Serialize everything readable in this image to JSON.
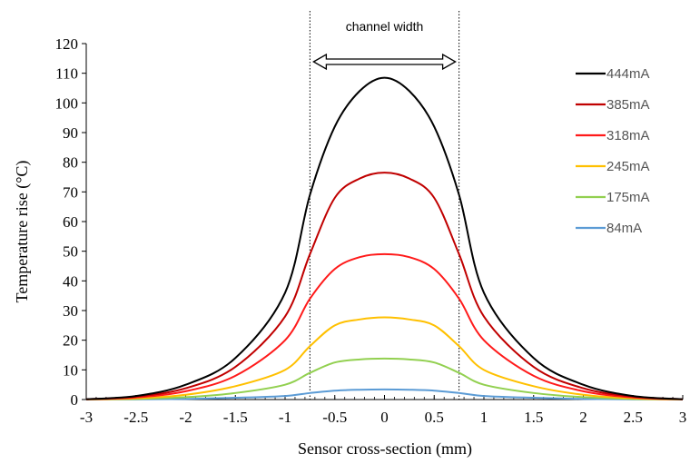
{
  "chart_data": {
    "type": "line",
    "title": "",
    "xlabel": "Sensor cross-section (mm)",
    "ylabel": "Temperature rise (°C)",
    "xlim": [
      -3,
      3
    ],
    "ylim": [
      0,
      120
    ],
    "x_ticks": [
      -3,
      -2.5,
      -2,
      -1.5,
      -1,
      -0.5,
      0,
      0.5,
      1,
      1.5,
      2,
      2.5,
      3
    ],
    "y_ticks": [
      0,
      10,
      20,
      30,
      40,
      50,
      60,
      70,
      80,
      90,
      100,
      110,
      120
    ],
    "grid": false,
    "legend_position": "top-right",
    "x": [
      -3,
      -2.5,
      -2,
      -1.5,
      -1,
      -0.75,
      -0.5,
      -0.25,
      0,
      0.25,
      0.5,
      0.75,
      1,
      1.5,
      2,
      2.5,
      3
    ],
    "series": [
      {
        "name": "444mA",
        "color": "#000000",
        "values": [
          0.1,
          1.2,
          5,
          14,
          36,
          69,
          92,
          104,
          108.5,
          104,
          92,
          69,
          36,
          14,
          5,
          1.2,
          0.1
        ]
      },
      {
        "name": "385mA",
        "color": "#c00000",
        "values": [
          0.1,
          1,
          3.8,
          11,
          28,
          49,
          68,
          74.5,
          76.5,
          74.5,
          68,
          49,
          28,
          11,
          3.8,
          1,
          0.1
        ]
      },
      {
        "name": "318mA",
        "color": "#ff1a1a",
        "values": [
          0.05,
          0.7,
          2.8,
          8,
          20,
          34,
          44,
          48,
          49,
          48,
          44,
          34,
          20,
          8,
          2.8,
          0.7,
          0.05
        ]
      },
      {
        "name": "245mA",
        "color": "#ffc000",
        "values": [
          0.03,
          0.4,
          1.6,
          4.5,
          10,
          18,
          25,
          27,
          27.7,
          27,
          25,
          18,
          10,
          4.5,
          1.6,
          0.4,
          0.03
        ]
      },
      {
        "name": "175mA",
        "color": "#92d050",
        "values": [
          0.02,
          0.2,
          0.8,
          2.2,
          5,
          9,
          12.5,
          13.5,
          13.8,
          13.5,
          12.5,
          9,
          5,
          2.2,
          0.8,
          0.2,
          0.02
        ]
      },
      {
        "name": "84mA",
        "color": "#5b9bd5",
        "values": [
          0.01,
          0.05,
          0.2,
          0.6,
          1.2,
          2.2,
          3,
          3.3,
          3.4,
          3.3,
          3,
          2.2,
          1.2,
          0.6,
          0.2,
          0.05,
          0.01
        ]
      }
    ],
    "annotations": {
      "channel_label": "channel width",
      "channel_bounds": [
        -0.75,
        0.75
      ]
    }
  }
}
